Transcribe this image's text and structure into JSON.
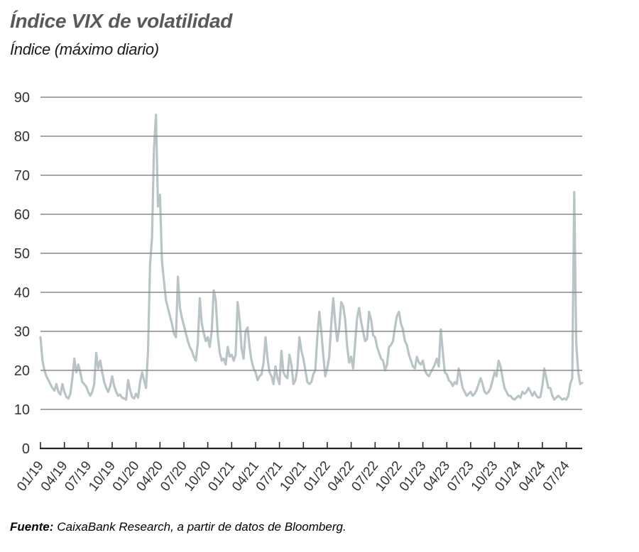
{
  "header": {
    "title": "Índice VIX de volatilidad",
    "subtitle": "Índice (máximo diario)"
  },
  "footer": {
    "source_label": "Fuente:",
    "source_text": "CaixaBank Research, a partir de datos de Bloomberg."
  },
  "colors": {
    "line": "#b9c4c7",
    "grid": "#8a8a8a",
    "axis": "#262626",
    "tick_label": "#333333",
    "title": "#58595b"
  },
  "chart_data": {
    "type": "line",
    "title": "Índice VIX de volatilidad",
    "subtitle": "Índice (máximo diario)",
    "ylabel": "Índice (máximo diario)",
    "ylim": [
      0,
      90
    ],
    "ytick_step": 10,
    "yticks": [
      0,
      10,
      20,
      30,
      40,
      50,
      60,
      70,
      80,
      90
    ],
    "grid": "horizontal",
    "legend_position": "none",
    "x_tick_labels": [
      "01/19",
      "04/19",
      "07/19",
      "10/19",
      "01/20",
      "04/20",
      "07/20",
      "10/20",
      "01/21",
      "04/21",
      "07/21",
      "10/21",
      "01/22",
      "04/22",
      "07/22",
      "10/22",
      "01/23",
      "04/23",
      "07/23",
      "10/23",
      "01/24",
      "04/24",
      "07/24"
    ],
    "x_start": "01/19",
    "x_end": "09/24",
    "x_months_span": 68,
    "points_per_month": 4,
    "series": [
      {
        "name": "VIX máximo diario",
        "values": [
          28.5,
          22.5,
          20,
          18.5,
          17.5,
          16.5,
          15.5,
          14.8,
          16.5,
          14.5,
          13.8,
          16.5,
          14.5,
          13.2,
          12.8,
          14,
          18,
          23,
          19.5,
          21.5,
          19.5,
          17,
          16.5,
          15.8,
          14.5,
          13.5,
          14.5,
          16.5,
          24.5,
          20.5,
          22.5,
          19.5,
          17,
          15.5,
          14.5,
          16,
          18.5,
          16,
          14.5,
          13.5,
          13.8,
          13,
          12.8,
          12.5,
          17.5,
          15,
          13.2,
          12.8,
          14,
          13,
          17,
          19.5,
          17.5,
          15.5,
          25,
          47,
          54,
          77,
          85.5,
          62,
          65,
          48,
          43,
          38,
          36,
          34,
          32,
          29.5,
          28.5,
          44,
          36,
          33.5,
          31.5,
          29.5,
          27.5,
          26,
          25,
          23.5,
          22.5,
          27,
          38.5,
          32,
          29.5,
          27.5,
          28.5,
          26,
          30,
          40.5,
          38,
          29,
          24.5,
          22.5,
          23,
          21.5,
          26,
          23.5,
          24,
          22.5,
          24,
          37.5,
          33,
          25.5,
          23,
          30,
          31,
          26,
          22.5,
          20.5,
          19.5,
          17.5,
          18.5,
          19,
          22,
          28.5,
          23,
          19.5,
          18.5,
          16.5,
          21,
          18,
          16.5,
          25,
          19.5,
          18.5,
          18,
          24,
          21.5,
          16.5,
          17.5,
          20.5,
          28.5,
          25,
          23,
          20,
          17,
          16.5,
          17,
          19,
          20,
          28.5,
          35,
          30,
          24,
          18.5,
          20.5,
          23.5,
          32,
          38.5,
          32,
          27.5,
          31,
          37.5,
          36.5,
          33,
          26,
          22,
          23.5,
          20.5,
          27,
          33.5,
          36,
          32.5,
          30,
          27.5,
          28,
          35,
          33,
          29,
          28.5,
          26,
          24.5,
          23,
          22.5,
          20,
          21.5,
          26,
          26.5,
          27.5,
          31,
          34,
          35,
          32,
          30.5,
          27.5,
          26.5,
          24,
          22.5,
          21,
          20.5,
          23.5,
          22,
          21.5,
          22.5,
          20,
          19,
          18.5,
          19.5,
          20.5,
          21.5,
          23,
          21,
          30.5,
          25,
          19.5,
          19,
          17.5,
          17,
          16,
          17,
          16.5,
          20.5,
          18,
          15.5,
          14.5,
          13.5,
          14,
          14.5,
          13.5,
          14,
          15,
          16.5,
          18,
          16.5,
          14.5,
          14,
          14.5,
          15.5,
          17.5,
          19.5,
          18.5,
          22.5,
          21,
          18,
          15.5,
          14.5,
          13.5,
          13.5,
          12.8,
          12.5,
          13,
          13.5,
          13,
          14.5,
          14,
          14.5,
          15.5,
          14.5,
          13.5,
          14.5,
          13.5,
          13,
          13.2,
          16,
          20.5,
          18,
          15.5,
          15.5,
          13.5,
          12.5,
          13,
          13.5,
          13,
          12.5,
          12.8,
          12.5,
          13.5,
          16.5,
          18,
          65.7,
          27,
          19.5,
          16.5,
          16.8
        ]
      }
    ]
  }
}
